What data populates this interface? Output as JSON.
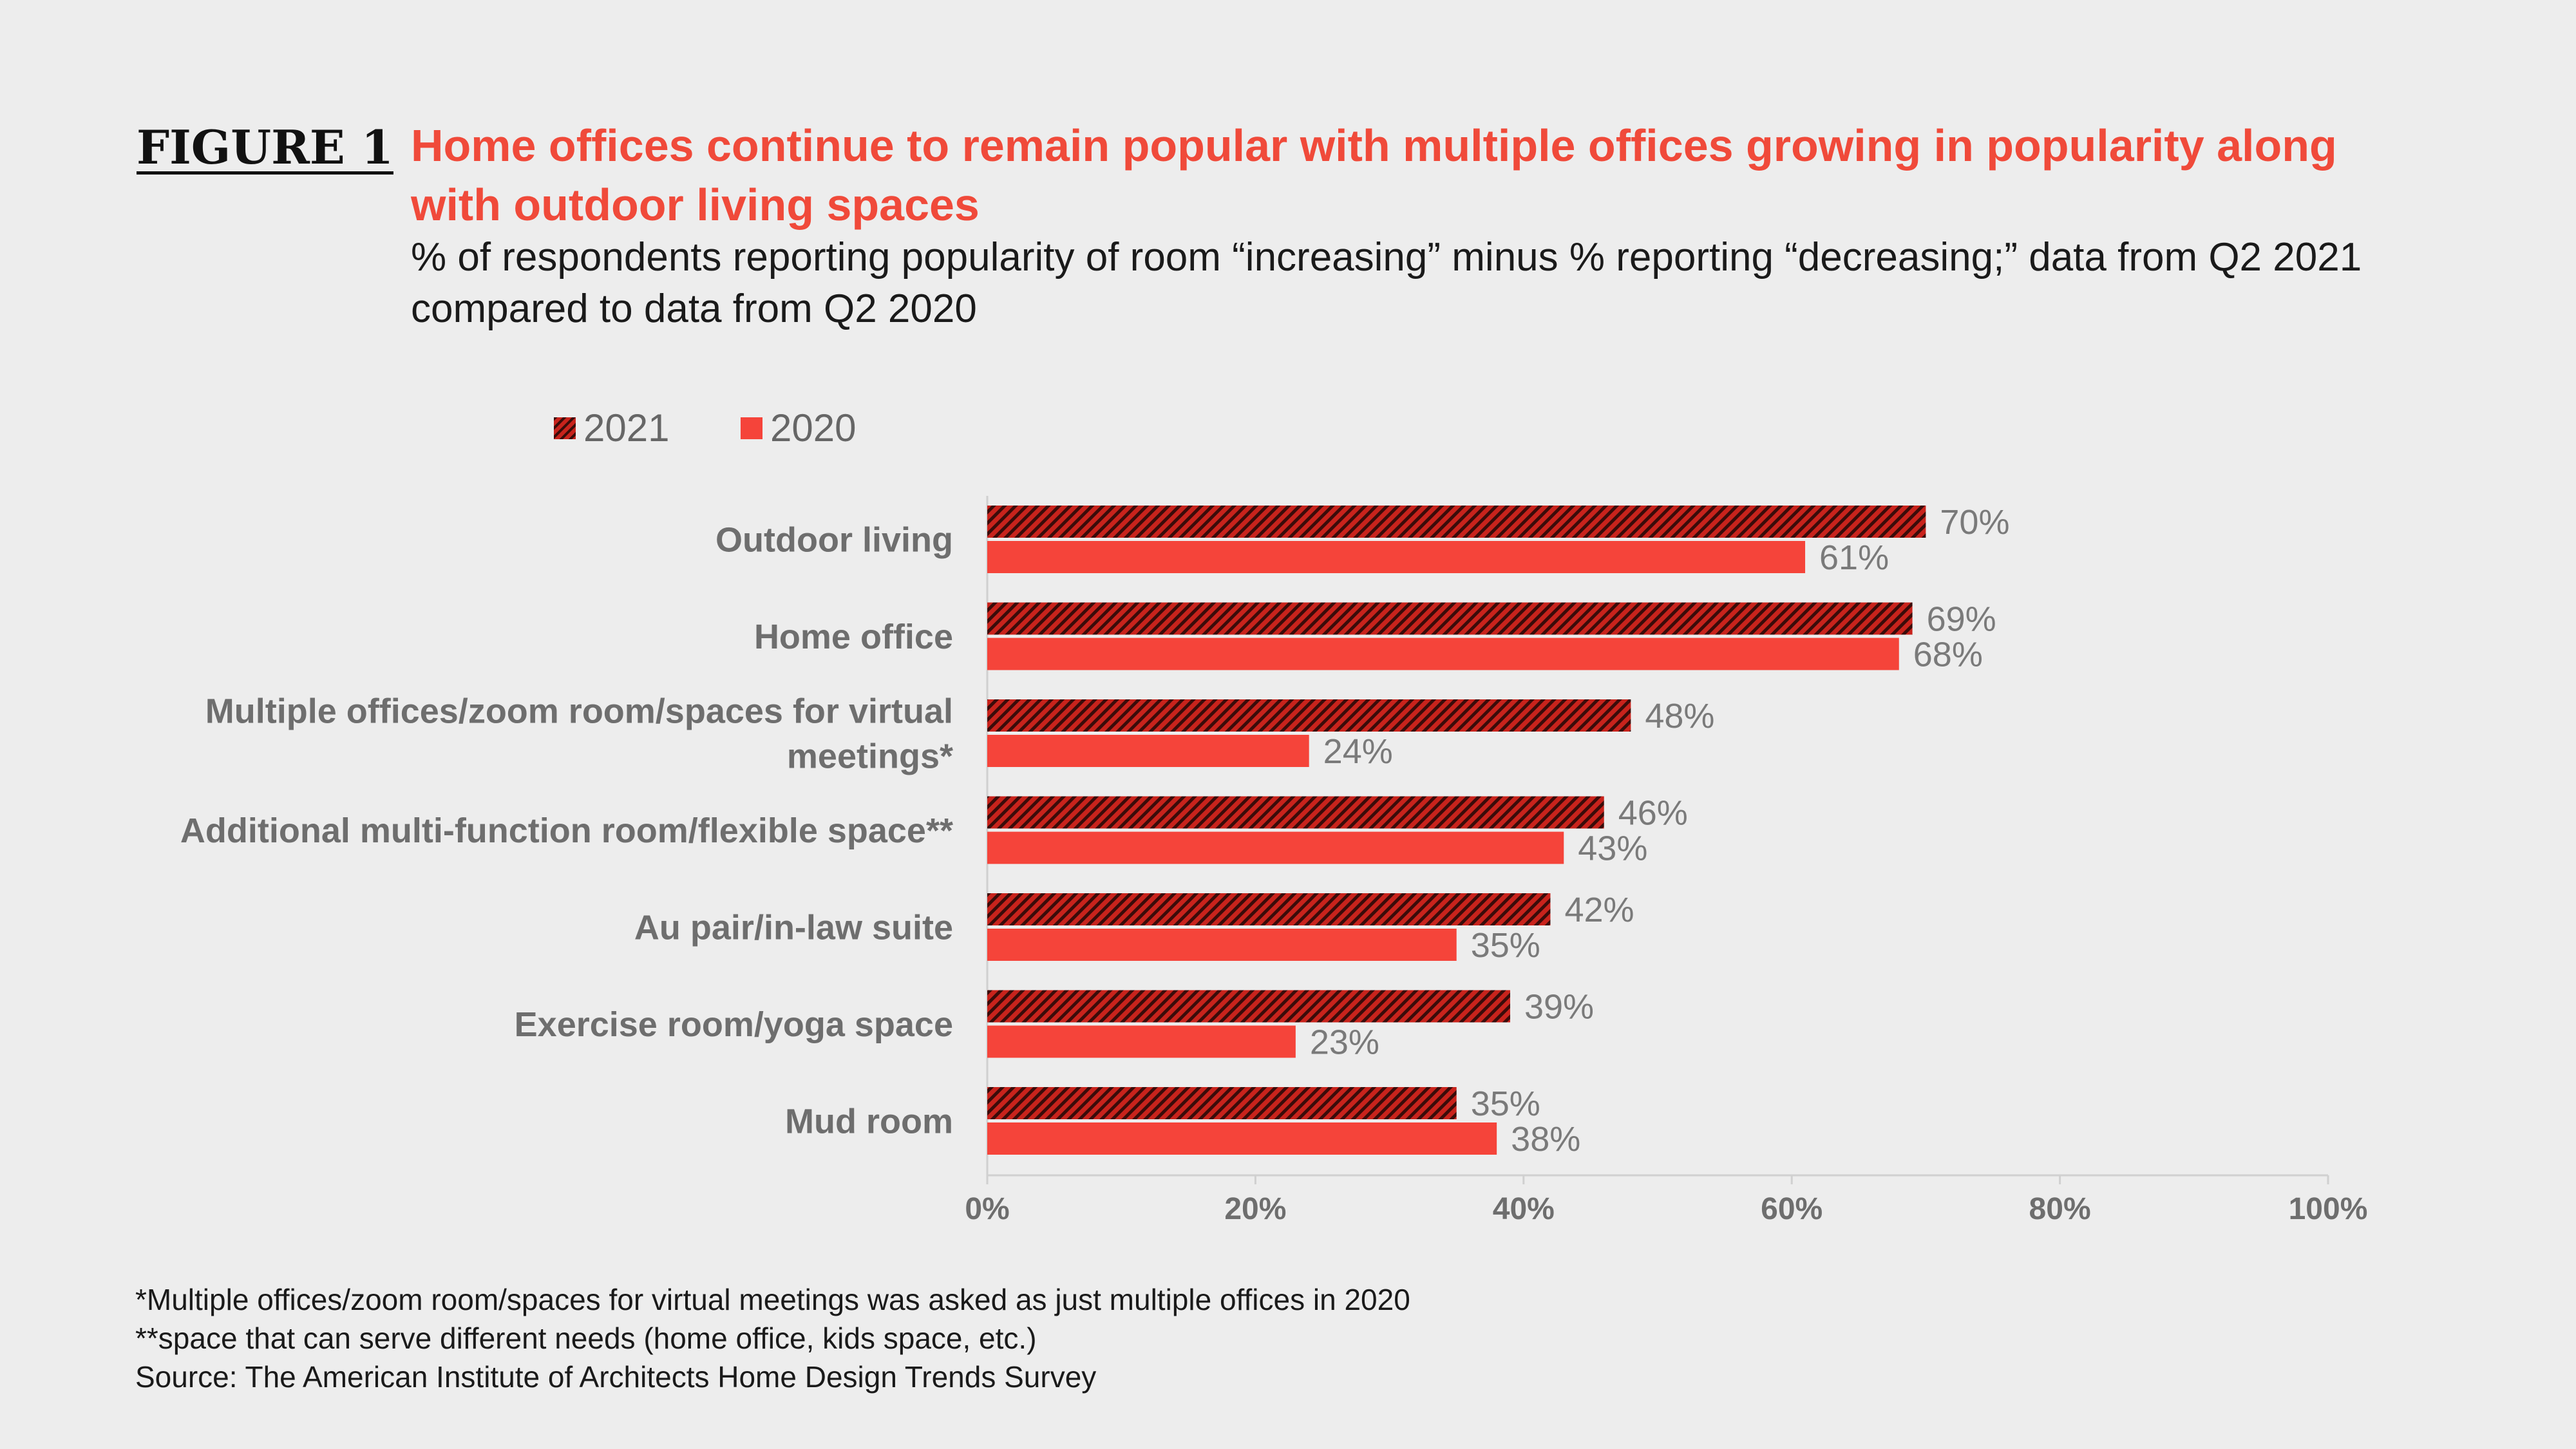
{
  "figure_label": "FIGURE 1",
  "title": "Home offices continue to remain popular with multiple offices growing in popularity along with outdoor living spaces",
  "subtitle": "% of respondents reporting popularity of room “increasing” minus % reporting “decreasing;” data from Q2 2021 compared to data from Q2 2020",
  "colors": {
    "series_2021": "#c8231c",
    "series_2021_stripe": "#3a0c0a",
    "series_2020": "#f5443a",
    "title": "#f04a3a"
  },
  "chart_data": {
    "type": "bar",
    "orientation": "horizontal",
    "categories": [
      "Outdoor living",
      "Home office",
      "Multiple offices/zoom room/spaces for virtual meetings*",
      "Additional multi-function room/flexible space**",
      "Au pair/in-law suite",
      "Exercise room/yoga space",
      "Mud room"
    ],
    "category_lines": [
      [
        "Outdoor living"
      ],
      [
        "Home office"
      ],
      [
        "Multiple offices/zoom room/spaces for virtual",
        "meetings*"
      ],
      [
        "Additional multi-function room/flexible space**"
      ],
      [
        "Au pair/in-law suite"
      ],
      [
        "Exercise room/yoga space"
      ],
      [
        "Mud room"
      ]
    ],
    "series": [
      {
        "name": "2021",
        "values": [
          70,
          69,
          48,
          46,
          42,
          39,
          35
        ],
        "labels": [
          "70%",
          "69%",
          "48%",
          "46%",
          "42%",
          "39%",
          "35%"
        ],
        "pattern": "diagonal-hatch"
      },
      {
        "name": "2020",
        "values": [
          61,
          68,
          24,
          43,
          35,
          23,
          38
        ],
        "labels": [
          "61%",
          "68%",
          "24%",
          "43%",
          "35%",
          "23%",
          "38%"
        ],
        "pattern": "solid"
      }
    ],
    "xlim": [
      0,
      100
    ],
    "ticks": [
      0,
      20,
      40,
      60,
      80,
      100
    ],
    "tick_labels": [
      "0%",
      "20%",
      "40%",
      "60%",
      "80%",
      "100%"
    ],
    "xlabel": "",
    "ylabel": "",
    "legend_position": "top-left",
    "grid": false
  },
  "footnotes": [
    "*Multiple offices/zoom room/spaces for virtual meetings was asked as just multiple offices in 2020",
    "**space that can serve different needs (home office, kids space, etc.)",
    "Source: The American Institute of Architects Home Design Trends Survey"
  ]
}
